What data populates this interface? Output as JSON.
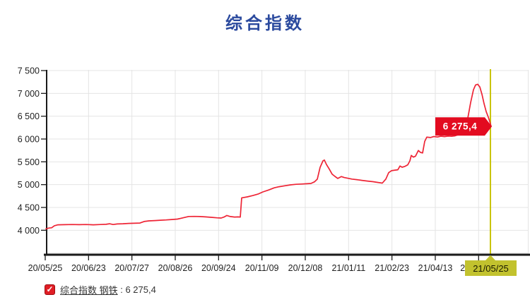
{
  "title": "综合指数",
  "legend": {
    "check_glyph": "✓",
    "label": "综合指数 钢铁",
    "separator": " : ",
    "value": "6 275,4"
  },
  "chart_data": {
    "type": "line",
    "title": "综合指数",
    "series_name": "综合指数 钢铁",
    "legend_position": "bottom-left",
    "grid": true,
    "y_axis": {
      "min": 3450,
      "max": 7550,
      "tick_values": [
        4000,
        4500,
        5000,
        5500,
        6000,
        6500,
        7000,
        7500
      ],
      "tick_labels": [
        "4 000",
        "4 500",
        "5 000",
        "5 500",
        "6 000",
        "6 500",
        "7 000",
        "7 500"
      ],
      "unlabeled_gridline_value": 3500
    },
    "x_axis": {
      "tick_labels": [
        "20/05/25",
        "20/06/23",
        "20/07/27",
        "20/08/26",
        "20/09/24",
        "20/11/09",
        "20/12/08",
        "21/01/11",
        "21/02/23",
        "21/04/13"
      ],
      "partial_covered_label": "2",
      "highlighted_label": "21/05/25"
    },
    "cursor": {
      "date_label": "21/05/25",
      "value": 6275.4,
      "value_label": "6 275,4"
    },
    "series": [
      {
        "name": "综合指数 钢铁",
        "last_value": 6275.4,
        "points": [
          [
            65,
            4030
          ],
          [
            69,
            4048
          ],
          [
            73,
            4055
          ],
          [
            77,
            4100
          ],
          [
            82,
            4120
          ],
          [
            92,
            4123
          ],
          [
            102,
            4126
          ],
          [
            112,
            4123
          ],
          [
            122,
            4126
          ],
          [
            132,
            4120
          ],
          [
            142,
            4126
          ],
          [
            150,
            4130
          ],
          [
            155,
            4142
          ],
          [
            160,
            4126
          ],
          [
            166,
            4138
          ],
          [
            174,
            4142
          ],
          [
            182,
            4150
          ],
          [
            190,
            4154
          ],
          [
            198,
            4158
          ],
          [
            204,
            4192
          ],
          [
            211,
            4206
          ],
          [
            219,
            4212
          ],
          [
            227,
            4220
          ],
          [
            235,
            4227
          ],
          [
            243,
            4235
          ],
          [
            251,
            4245
          ],
          [
            259,
            4272
          ],
          [
            267,
            4302
          ],
          [
            275,
            4304
          ],
          [
            283,
            4300
          ],
          [
            291,
            4292
          ],
          [
            299,
            4283
          ],
          [
            307,
            4273
          ],
          [
            313,
            4268
          ],
          [
            317,
            4290
          ],
          [
            321,
            4323
          ],
          [
            326,
            4300
          ],
          [
            332,
            4290
          ],
          [
            337,
            4293
          ],
          [
            340,
            4288
          ],
          [
            342,
            4710
          ],
          [
            350,
            4732
          ],
          [
            358,
            4762
          ],
          [
            365,
            4792
          ],
          [
            372,
            4840
          ],
          [
            380,
            4882
          ],
          [
            388,
            4930
          ],
          [
            395,
            4955
          ],
          [
            403,
            4975
          ],
          [
            411,
            4995
          ],
          [
            419,
            5008
          ],
          [
            427,
            5014
          ],
          [
            434,
            5020
          ],
          [
            440,
            5026
          ],
          [
            445,
            5062
          ],
          [
            449,
            5120
          ],
          [
            453,
            5380
          ],
          [
            457,
            5520
          ],
          [
            459,
            5540
          ],
          [
            462,
            5440
          ],
          [
            466,
            5340
          ],
          [
            470,
            5230
          ],
          [
            474,
            5180
          ],
          [
            478,
            5136
          ],
          [
            483,
            5178
          ],
          [
            487,
            5156
          ],
          [
            492,
            5140
          ],
          [
            498,
            5122
          ],
          [
            505,
            5110
          ],
          [
            512,
            5094
          ],
          [
            520,
            5078
          ],
          [
            528,
            5064
          ],
          [
            535,
            5048
          ],
          [
            541,
            5034
          ],
          [
            546,
            5122
          ],
          [
            550,
            5262
          ],
          [
            554,
            5306
          ],
          [
            559,
            5318
          ],
          [
            563,
            5326
          ],
          [
            566,
            5408
          ],
          [
            569,
            5382
          ],
          [
            573,
            5400
          ],
          [
            577,
            5434
          ],
          [
            580,
            5520
          ],
          [
            582,
            5640
          ],
          [
            585,
            5602
          ],
          [
            588,
            5624
          ],
          [
            592,
            5750
          ],
          [
            595,
            5706
          ],
          [
            598,
            5694
          ],
          [
            601,
            5948
          ],
          [
            604,
            6042
          ],
          [
            609,
            6032
          ],
          [
            614,
            6054
          ],
          [
            619,
            6044
          ],
          [
            624,
            6062
          ],
          [
            629,
            6052
          ],
          [
            634,
            6064
          ],
          [
            639,
            6060
          ],
          [
            644,
            6070
          ],
          [
            649,
            6098
          ],
          [
            654,
            6135
          ],
          [
            658,
            6255
          ],
          [
            662,
            6460
          ],
          [
            666,
            6800
          ],
          [
            670,
            7080
          ],
          [
            673,
            7185
          ],
          [
            676,
            7200
          ],
          [
            679,
            7140
          ],
          [
            682,
            6980
          ],
          [
            685,
            6775
          ],
          [
            688,
            6600
          ],
          [
            691,
            6480
          ],
          [
            693,
            6380
          ],
          [
            695,
            6278
          ]
        ]
      }
    ],
    "colors": {
      "line": "#ee2435",
      "value_flag_bg": "#e30b20",
      "value_flag_text": "#ffffff",
      "cursor_line": "#c9c400",
      "date_badge_bg": "#c2c22e",
      "date_badge_text": "#1a1a00",
      "grid": "#e4e4e4",
      "axis": "#1a1a1a",
      "tick_text": "#222222",
      "title_text": "#2b4a9e"
    }
  }
}
